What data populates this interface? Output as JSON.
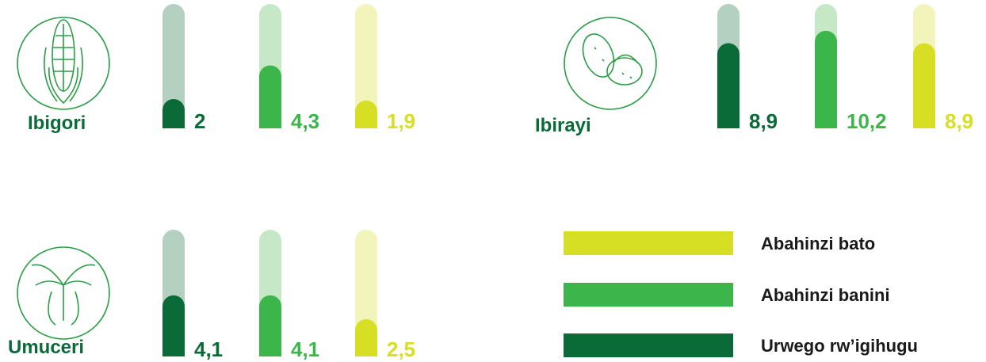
{
  "chart_data": [
    {
      "type": "gauge",
      "title": "Ibigori",
      "values": [
        2,
        4.3,
        1.9
      ],
      "value_labels": [
        "2",
        "4,3",
        "1,9"
      ],
      "ylim": [
        0,
        8.5
      ]
    },
    {
      "type": "gauge",
      "title": "Ibirayi",
      "values": [
        8.9,
        10.2,
        8.9
      ],
      "value_labels": [
        "8,9",
        "10,2",
        "8,9"
      ],
      "ylim": [
        0,
        13
      ]
    },
    {
      "type": "gauge",
      "title": "Umuceri",
      "values": [
        4.1,
        4.1,
        2.5
      ],
      "value_labels": [
        "4,1",
        "4,1",
        "2,5"
      ],
      "ylim": [
        0,
        8.5
      ]
    }
  ],
  "legend": [
    {
      "name": "Urwego rw’igihugu",
      "color": "#0b6b38",
      "track_color": "#b4d0c0"
    },
    {
      "name": "Abahinzi banini",
      "color": "#3cb54a",
      "track_color": "#c6e8c6"
    },
    {
      "name": "Abahinzi bato",
      "color": "#d6df23",
      "track_color": "#f2f4bb"
    }
  ]
}
